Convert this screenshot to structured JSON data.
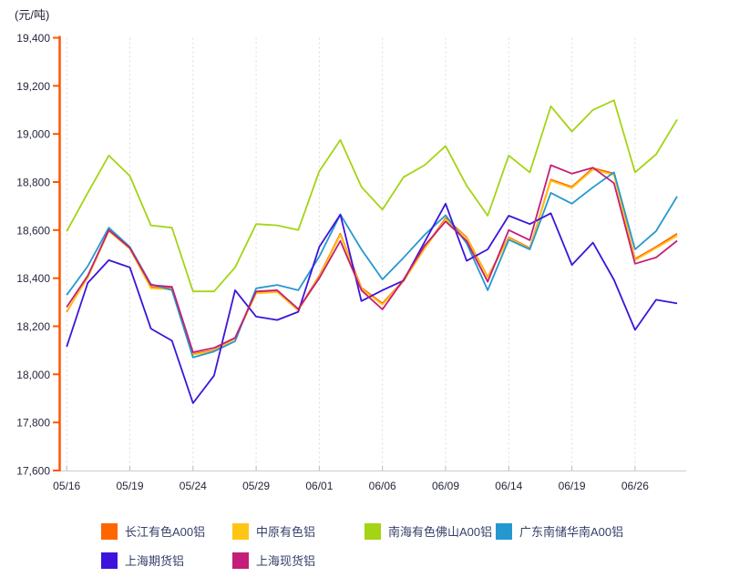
{
  "unit_label": "(元/吨)",
  "chart_data": {
    "type": "line",
    "title": "",
    "ylabel_unit": "(元/吨)",
    "ylim": [
      17600,
      19400
    ],
    "grid": "vertical-dashed",
    "legend_position": "bottom",
    "x_dates": [
      "05/16",
      "05/17",
      "05/18",
      "05/19",
      "05/22",
      "05/23",
      "05/24",
      "05/25",
      "05/26",
      "05/29",
      "05/30",
      "05/31",
      "06/01",
      "06/02",
      "06/05",
      "06/06",
      "06/07",
      "06/08",
      "06/09",
      "06/12",
      "06/13",
      "06/14",
      "06/15",
      "06/16",
      "06/19",
      "06/20",
      "06/21",
      "06/26",
      "06/27",
      "06/28"
    ],
    "x_ticks": [
      {
        "index": 0,
        "label": "05/16"
      },
      {
        "index": 3,
        "label": "05/19"
      },
      {
        "index": 6,
        "label": "05/24"
      },
      {
        "index": 9,
        "label": "05/29"
      },
      {
        "index": 12,
        "label": "06/01"
      },
      {
        "index": 15,
        "label": "06/06"
      },
      {
        "index": 18,
        "label": "06/09"
      },
      {
        "index": 21,
        "label": "06/14"
      },
      {
        "index": 24,
        "label": "06/19"
      },
      {
        "index": 27,
        "label": "06/26"
      }
    ],
    "y_ticks": [
      {
        "value": 19400,
        "label": "19,400"
      },
      {
        "value": 19200,
        "label": "19,200"
      },
      {
        "value": 19000,
        "label": "19,000"
      },
      {
        "value": 18800,
        "label": "18,800"
      },
      {
        "value": 18600,
        "label": "18,600"
      },
      {
        "value": 18400,
        "label": "18,400"
      },
      {
        "value": 18200,
        "label": "18,200"
      },
      {
        "value": 18000,
        "label": "18,000"
      },
      {
        "value": 17800,
        "label": "17,800"
      },
      {
        "value": 17600,
        "label": "17,600"
      }
    ],
    "series": [
      {
        "name": "长江有色A00铝",
        "color": "#FF6600",
        "values": [
          18260,
          18405,
          18600,
          18525,
          18362,
          18358,
          18085,
          18100,
          18150,
          18340,
          18345,
          18268,
          18410,
          18585,
          18360,
          18295,
          18390,
          18525,
          18650,
          18570,
          18405,
          18570,
          18525,
          18810,
          18780,
          18858,
          18835,
          18480,
          18530,
          18585
        ]
      },
      {
        "name": "中原有色铝",
        "color": "#FFC515",
        "values": [
          18263,
          18402,
          18596,
          18522,
          18358,
          18354,
          18082,
          18097,
          18148,
          18337,
          18342,
          18265,
          18405,
          18580,
          18356,
          18290,
          18387,
          18522,
          18645,
          18566,
          18402,
          18566,
          18522,
          18805,
          18775,
          18852,
          18830,
          18475,
          18525,
          18576
        ]
      },
      {
        "name": "南海有色佛山A00铝",
        "color": "#A4D414",
        "values": [
          18595,
          18755,
          18910,
          18825,
          18620,
          18610,
          18345,
          18345,
          18445,
          18625,
          18620,
          18600,
          18845,
          18975,
          18780,
          18685,
          18820,
          18870,
          18950,
          18785,
          18660,
          18910,
          18840,
          19115,
          19010,
          19100,
          19140,
          18840,
          18915,
          19060
        ]
      },
      {
        "name": "广东南储华南A00铝",
        "color": "#2598D0",
        "values": [
          18330,
          18450,
          18610,
          18530,
          18375,
          18350,
          18070,
          18095,
          18138,
          18358,
          18372,
          18350,
          18490,
          18665,
          18520,
          18395,
          18485,
          18580,
          18662,
          18545,
          18350,
          18560,
          18520,
          18755,
          18710,
          18778,
          18840,
          18520,
          18596,
          18740
        ]
      },
      {
        "name": "上海期货铝",
        "color": "#3D14DB",
        "values": [
          18115,
          18380,
          18475,
          18445,
          18190,
          18140,
          17880,
          17995,
          18350,
          18240,
          18226,
          18260,
          18530,
          18665,
          18305,
          18350,
          18390,
          18550,
          18710,
          18472,
          18520,
          18660,
          18625,
          18670,
          18455,
          18548,
          18393,
          18185,
          18310,
          18295
        ]
      },
      {
        "name": "上海现货铝",
        "color": "#C41E78",
        "values": [
          18280,
          18410,
          18600,
          18526,
          18371,
          18364,
          18092,
          18110,
          18152,
          18345,
          18350,
          18272,
          18400,
          18555,
          18350,
          18270,
          18394,
          18535,
          18636,
          18555,
          18385,
          18600,
          18558,
          18870,
          18835,
          18860,
          18795,
          18460,
          18486,
          18556
        ]
      }
    ]
  },
  "colors": {
    "y_axis": "#FF5500",
    "x_axis": "#CCCCCC",
    "gridline": "#DCDCDC",
    "tick_mark": "#BBBBBB",
    "axis_text": "#25283a",
    "legend_text": "#35406a",
    "background": "#FFFFFF"
  }
}
